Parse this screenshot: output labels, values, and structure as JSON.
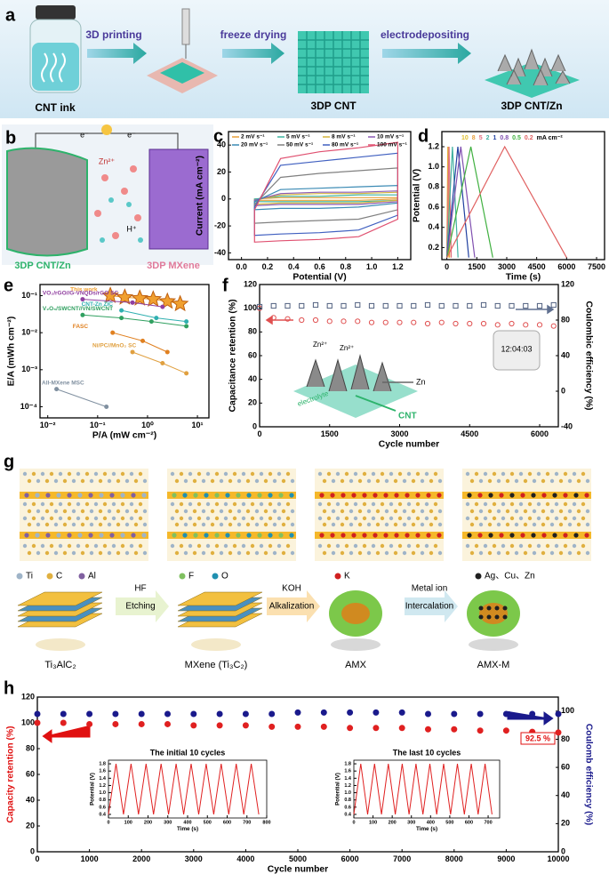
{
  "panel_labels": [
    "a",
    "b",
    "c",
    "d",
    "e",
    "f",
    "g",
    "h"
  ],
  "a": {
    "steps": [
      "3D printing",
      "freeze drying",
      "electrodepositing"
    ],
    "items": [
      "CNT ink",
      "3DP CNT",
      "3DP CNT/Zn"
    ]
  },
  "b": {
    "electrons": [
      "e⁻",
      "e⁻"
    ],
    "ions": [
      "Zn²⁺",
      "H⁺"
    ],
    "electrodes": [
      "3DP CNT/Zn",
      "3DP MXene"
    ]
  },
  "f_inset": {
    "labels": [
      "Zn²⁺",
      "Zn²⁺",
      "electrolyte",
      "Zn",
      "CNT"
    ],
    "clock": "12:04:03"
  },
  "g": {
    "legend": [
      "Ti",
      "C",
      "Al",
      "F",
      "O",
      "K",
      "Ag、Cu、Zn"
    ],
    "steps": [
      [
        "HF",
        "Etching"
      ],
      [
        "KOH",
        "Alkalization"
      ],
      [
        "Metal ion",
        "Intercalation"
      ]
    ],
    "materials": [
      "Ti₃AlC₂",
      "MXene (Ti₃C₂)",
      "AMX",
      "AMX-M"
    ]
  },
  "chart_data": [
    {
      "type": "line",
      "closed": true,
      "xlabel": "Potential (V)",
      "ylabel": "Current (mA cm⁻²)",
      "xlim": [
        -0.1,
        1.3
      ],
      "ylim": [
        -45,
        50
      ],
      "xticks": [
        {
          "value": 0,
          "label": "0.0"
        },
        0.2,
        0.4,
        0.6,
        0.8,
        {
          "value": 1,
          "label": "1.0"
        },
        1.2
      ],
      "yticks": [
        -40,
        -20,
        0,
        20,
        40
      ],
      "legend": "upper left",
      "series": [
        {
          "name": "2 mV s⁻¹",
          "color": "#e8a03a",
          "x": [
            0.1,
            0.3,
            0.6,
            0.9,
            1.2,
            1.2,
            0.9,
            0.6,
            0.3,
            0.1
          ],
          "values": [
            0,
            1,
            1,
            1,
            1,
            0,
            -1,
            -1,
            -1,
            -1
          ]
        },
        {
          "name": "5 mV s⁻¹",
          "color": "#3cb4a0",
          "x": [
            0.1,
            0.3,
            0.6,
            0.9,
            1.2,
            1.2,
            0.9,
            0.6,
            0.3,
            0.1
          ],
          "values": [
            0,
            2,
            2,
            3,
            3,
            -1,
            -2,
            -2,
            -2,
            -2
          ]
        },
        {
          "name": "8 mV s⁻¹",
          "color": "#d4b43c",
          "x": [
            0.1,
            0.3,
            0.6,
            0.9,
            1.2,
            1.2,
            0.9,
            0.6,
            0.3,
            0.1
          ],
          "values": [
            -1,
            3,
            4,
            4,
            5,
            -1,
            -3,
            -3,
            -3,
            -4
          ]
        },
        {
          "name": "10 mV s⁻¹",
          "color": "#8a5ab4",
          "x": [
            0.1,
            0.3,
            0.6,
            0.9,
            1.2,
            1.2,
            0.9,
            0.6,
            0.3,
            0.1
          ],
          "values": [
            -1,
            4,
            5,
            5,
            6,
            -2,
            -4,
            -4,
            -4,
            -5
          ]
        },
        {
          "name": "20 mV s⁻¹",
          "color": "#3a8ab4",
          "x": [
            0.1,
            0.3,
            0.6,
            0.9,
            1.2,
            1.2,
            0.9,
            0.6,
            0.3,
            0.1
          ],
          "values": [
            -2,
            7,
            8,
            9,
            10,
            -3,
            -6,
            -7,
            -7,
            -8
          ]
        },
        {
          "name": "50 mV s⁻¹",
          "color": "#808080",
          "x": [
            0.1,
            0.3,
            0.6,
            0.9,
            1.2,
            1.2,
            0.9,
            0.6,
            0.3,
            0.1
          ],
          "values": [
            -4,
            16,
            19,
            21,
            23,
            -8,
            -15,
            -16,
            -17,
            -18
          ]
        },
        {
          "name": "80 mV s⁻¹",
          "color": "#4060c0",
          "x": [
            0.1,
            0.3,
            0.6,
            0.9,
            1.2,
            1.2,
            0.9,
            0.6,
            0.3,
            0.1
          ],
          "values": [
            -6,
            25,
            28,
            31,
            34,
            -12,
            -23,
            -25,
            -26,
            -27
          ]
        },
        {
          "name": "100 mV s⁻¹",
          "color": "#e05070",
          "x": [
            0.1,
            0.3,
            0.6,
            0.9,
            1.2,
            1.2,
            0.9,
            0.6,
            0.3,
            0.1
          ],
          "values": [
            -8,
            30,
            35,
            38,
            42,
            -15,
            -28,
            -30,
            -31,
            -32
          ]
        }
      ]
    },
    {
      "type": "line",
      "xlabel": "Time (s)",
      "ylabel": "Potential (V)",
      "xlim": [
        -250,
        7900
      ],
      "ylim": [
        0.08,
        1.35
      ],
      "xticks": [
        0,
        1500,
        3000,
        4500,
        6000,
        7500
      ],
      "yticks": [
        0.2,
        0.4,
        0.6,
        0.8,
        {
          "value": 1,
          "label": "1.0"
        },
        1.2
      ],
      "legend": "upper center",
      "legend_unit": "mA cm⁻²",
      "series": [
        {
          "name": "10",
          "color": "#e0c030",
          "x": [
            0,
            50,
            100
          ],
          "values": [
            0.1,
            1.2,
            0.1
          ]
        },
        {
          "name": "8",
          "color": "#e8a040",
          "x": [
            0,
            70,
            140
          ],
          "values": [
            0.1,
            1.2,
            0.1
          ]
        },
        {
          "name": "5",
          "color": "#e07080",
          "x": [
            0,
            110,
            220
          ],
          "values": [
            0.1,
            1.2,
            0.1
          ]
        },
        {
          "name": "2",
          "color": "#40b0a0",
          "x": [
            0,
            280,
            560
          ],
          "values": [
            0.1,
            1.2,
            0.1
          ]
        },
        {
          "name": "1",
          "color": "#2040a0",
          "x": [
            0,
            550,
            1100
          ],
          "values": [
            0.1,
            1.2,
            0.1
          ]
        },
        {
          "name": "0.8",
          "color": "#8050b0",
          "x": [
            0,
            700,
            1400
          ],
          "values": [
            0.1,
            1.2,
            0.1
          ]
        },
        {
          "name": "0.5",
          "color": "#40b040",
          "x": [
            0,
            1200,
            2300
          ],
          "values": [
            0.1,
            1.2,
            0.1
          ]
        },
        {
          "name": "0.2",
          "color": "#e06060",
          "x": [
            0,
            2900,
            6000
          ],
          "values": [
            0.1,
            1.2,
            0.1
          ]
        }
      ]
    },
    {
      "type": "line",
      "xlabel": "P/A (mW cm⁻²)",
      "ylabel": "E/A (mWh cm⁻²)",
      "xlog": true,
      "ylog": true,
      "xlim": [
        0.007,
        17
      ],
      "ylim": [
        5e-05,
        0.2
      ],
      "xticks": [
        {
          "value": 0.01,
          "label": "10⁻²"
        },
        {
          "value": 0.1,
          "label": "10⁻¹"
        },
        {
          "value": 1,
          "label": "10⁰"
        },
        {
          "value": 10,
          "label": "10¹"
        }
      ],
      "yticks": [
        {
          "value": 0.0001,
          "label": "10⁻⁴"
        },
        {
          "value": 0.001,
          "label": "10⁻³"
        },
        {
          "value": 0.01,
          "label": "10⁻²"
        },
        {
          "value": 0.1,
          "label": "10⁻¹"
        }
      ],
      "legend": "inline",
      "series": [
        {
          "name": "This work",
          "color": "#f0a030",
          "marker": "star",
          "x": [
            0.18,
            0.35,
            0.7,
            1.3,
            2.5,
            4.5
          ],
          "values": [
            0.1,
            0.09,
            0.085,
            0.08,
            0.07,
            0.06
          ]
        },
        {
          "name": "VO₂/rGO//G-VNQDs/rGO SC",
          "color": "#9040a0",
          "marker": "circle",
          "x": [
            0.05,
            0.5,
            2
          ],
          "values": [
            0.08,
            0.065,
            0.05
          ]
        },
        {
          "name": "V₂O₅/SWCNT//VN/SWCNT",
          "color": "#30a060",
          "marker": "circle",
          "x": [
            0.05,
            0.3,
            1.2,
            6
          ],
          "values": [
            0.03,
            0.025,
            0.02,
            0.015
          ]
        },
        {
          "name": "CNT-Zn ZIC",
          "color": "#30b0b0",
          "marker": "circle",
          "x": [
            0.3,
            1.5,
            6
          ],
          "values": [
            0.04,
            0.025,
            0.02
          ]
        },
        {
          "name": "FASC",
          "color": "#e08020",
          "marker": "circle",
          "x": [
            0.2,
            0.8,
            2.5
          ],
          "values": [
            0.01,
            0.006,
            0.003
          ]
        },
        {
          "name": "Ni/PC//MnO₂ SC",
          "color": "#e0a040",
          "marker": "circle",
          "x": [
            0.5,
            2,
            6
          ],
          "values": [
            0.003,
            0.0015,
            0.0008
          ]
        },
        {
          "name": "All-MXene MSC",
          "color": "#8090a0",
          "marker": "circle",
          "x": [
            0.015,
            0.15
          ],
          "values": [
            0.0003,
            0.0001
          ]
        }
      ]
    },
    {
      "type": "scatter",
      "hollow": true,
      "xlabel": "Cycle number",
      "ylabel": "Capacitance retention (%)",
      "y2label": "Coulombic efficiency (%)",
      "xlim": [
        0,
        6400
      ],
      "ylim": [
        0,
        120
      ],
      "y2lim": [
        -40,
        120
      ],
      "xticks": [
        0,
        1500,
        3000,
        4500,
        6000
      ],
      "yticks": [
        0,
        20,
        40,
        60,
        80,
        100,
        120
      ],
      "y2ticks": [
        -40,
        0,
        40,
        80,
        120
      ],
      "x": [
        0,
        300,
        600,
        900,
        1200,
        1500,
        1800,
        2100,
        2400,
        2700,
        3000,
        3300,
        3600,
        3900,
        4200,
        4500,
        4800,
        5100,
        5400,
        5700,
        6000,
        6300
      ],
      "series": [
        {
          "name": "Capacitance retention",
          "color": "#e05050",
          "marker": "circle",
          "values": [
            100,
            92,
            91,
            90,
            90,
            89,
            89,
            89,
            88,
            88,
            88,
            88,
            87,
            88,
            87,
            87,
            87,
            86,
            87,
            86,
            86,
            85
          ]
        },
        {
          "name": "Coulombic efficiency",
          "color": "#506080",
          "marker": "square",
          "axis": "y2",
          "values": [
            95,
            96,
            96,
            96,
            97,
            96,
            96,
            97,
            96,
            96,
            96,
            96,
            97,
            96,
            96,
            96,
            97,
            96,
            96,
            96,
            96,
            97
          ]
        }
      ]
    },
    {
      "type": "scatter",
      "xlabel": "Cycle number",
      "ylabel": "Capacity retention (%)",
      "y2label": "Coulomb efficiency (%)",
      "ylabel_color": "#e01010",
      "y2label_color": "#1a1a8c",
      "annotation": "92.5 %",
      "xlim": [
        0,
        10000
      ],
      "ylim": [
        0,
        120
      ],
      "y2lim": [
        0,
        110
      ],
      "xticks": [
        0,
        1000,
        2000,
        3000,
        4000,
        5000,
        6000,
        7000,
        8000,
        9000,
        10000
      ],
      "yticks": [
        0,
        20,
        40,
        60,
        80,
        100,
        120
      ],
      "y2ticks": [
        0,
        20,
        40,
        60,
        80,
        100
      ],
      "x": [
        0,
        500,
        1000,
        1500,
        2000,
        2500,
        3000,
        3500,
        4000,
        4500,
        5000,
        5500,
        6000,
        6500,
        7000,
        7500,
        8000,
        8500,
        9000,
        9500,
        10000
      ],
      "series": [
        {
          "name": "Capacity retention",
          "color": "#e02020",
          "marker": "circle",
          "values": [
            100,
            100,
            99,
            99,
            99,
            99,
            98,
            98,
            98,
            97,
            97,
            97,
            96,
            96,
            96,
            95,
            95,
            94,
            94,
            93,
            92.5
          ]
        },
        {
          "name": "Coulomb efficiency",
          "color": "#1a1a8c",
          "marker": "circle",
          "axis": "y2",
          "values": [
            98,
            98,
            98,
            98,
            98,
            98,
            98,
            98,
            98,
            98,
            99,
            99,
            99,
            99,
            99,
            98,
            98,
            98,
            98,
            98,
            98
          ]
        }
      ]
    },
    {
      "type": "line",
      "title": "The initial 10 cycles",
      "xlabel": "Time (s)",
      "ylabel": "Potential (V)",
      "xlim": [
        0,
        800
      ],
      "ylim": [
        0.3,
        1.9
      ],
      "xticks": [
        0,
        100,
        200,
        300,
        400,
        500,
        600,
        700,
        800
      ],
      "yticks": [
        0.4,
        0.6,
        0.8,
        {
          "value": 1,
          "label": "1.0"
        },
        1.2,
        1.4,
        1.6,
        1.8
      ],
      "series": [
        {
          "name": "initial",
          "color": "#e02020",
          "x": [
            0,
            38,
            76,
            114,
            152,
            190,
            228,
            266,
            304,
            342,
            380,
            418,
            456,
            494,
            532,
            570,
            608,
            646,
            684,
            722,
            760
          ],
          "values": [
            0.4,
            1.8,
            0.4,
            1.8,
            0.4,
            1.8,
            0.4,
            1.8,
            0.4,
            1.8,
            0.4,
            1.8,
            0.4,
            1.8,
            0.4,
            1.8,
            0.4,
            1.8,
            0.4,
            1.8,
            0.4
          ]
        }
      ]
    },
    {
      "type": "line",
      "title": "The last 10 cycles",
      "xlabel": "Time (s)",
      "ylabel": "Potential (V)",
      "xlim": [
        0,
        760
      ],
      "ylim": [
        0.3,
        1.9
      ],
      "xticks": [
        0,
        100,
        200,
        300,
        400,
        500,
        600,
        700
      ],
      "yticks": [
        0.4,
        0.6,
        0.8,
        {
          "value": 1,
          "label": "1.0"
        },
        1.2,
        1.4,
        1.6,
        1.8
      ],
      "series": [
        {
          "name": "last",
          "color": "#e02020",
          "x": [
            0,
            36,
            72,
            108,
            144,
            180,
            216,
            252,
            288,
            324,
            360,
            396,
            432,
            468,
            504,
            540,
            576,
            612,
            648,
            684,
            720
          ],
          "values": [
            0.4,
            1.8,
            0.4,
            1.8,
            0.4,
            1.8,
            0.4,
            1.8,
            0.4,
            1.8,
            0.4,
            1.8,
            0.4,
            1.8,
            0.4,
            1.8,
            0.4,
            1.8,
            0.4,
            1.8,
            0.4
          ]
        }
      ]
    }
  ]
}
